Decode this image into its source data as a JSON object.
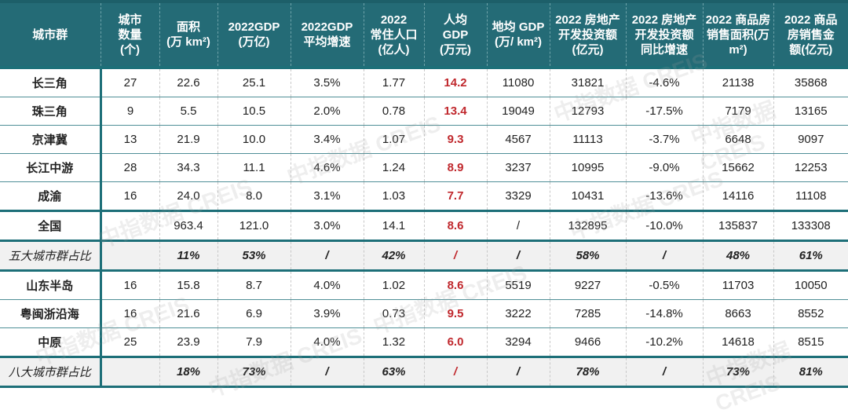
{
  "headers": [
    "城市群",
    "城市\n数量\n(个)",
    "面积\n(万 km²)",
    "2022GDP\n(万亿)",
    "2022GDP\n平均增速",
    "2022\n常住人口\n(亿人)",
    "人均\nGDP\n(万元)",
    "地均 GDP\n(万/ km²)",
    "2022 房地产\n开发投资额\n(亿元)",
    "2022 房地产\n开发投资额\n同比增速",
    "2022 商品房\n销售面积(万\nm²)",
    "2022 商品\n房销售金\n额(亿元)"
  ],
  "rows": [
    {
      "type": "normal",
      "cells": [
        "长三角",
        "27",
        "22.6",
        "25.1",
        "3.5%",
        "1.77",
        "14.2",
        "11080",
        "31821",
        "-4.6%",
        "21138",
        "35868"
      ]
    },
    {
      "type": "normal",
      "cells": [
        "珠三角",
        "9",
        "5.5",
        "10.5",
        "2.0%",
        "0.78",
        "13.4",
        "19049",
        "12793",
        "-17.5%",
        "7179",
        "13165"
      ]
    },
    {
      "type": "normal",
      "cells": [
        "京津冀",
        "13",
        "21.9",
        "10.0",
        "3.4%",
        "1.07",
        "9.3",
        "4567",
        "11113",
        "-3.7%",
        "6648",
        "9097"
      ]
    },
    {
      "type": "normal",
      "cells": [
        "长江中游",
        "28",
        "34.3",
        "11.1",
        "4.6%",
        "1.24",
        "8.9",
        "3237",
        "10995",
        "-9.0%",
        "15662",
        "12253"
      ]
    },
    {
      "type": "normal",
      "cells": [
        "成渝",
        "16",
        "24.0",
        "8.0",
        "3.1%",
        "1.03",
        "7.7",
        "3329",
        "10431",
        "-13.6%",
        "14116",
        "11108"
      ]
    },
    {
      "type": "total",
      "cells": [
        "全国",
        "",
        "963.4",
        "121.0",
        "3.0%",
        "14.1",
        "8.6",
        "/",
        "132895",
        "-10.0%",
        "135837",
        "133308"
      ]
    },
    {
      "type": "ratio",
      "cells": [
        "五大城市群占比",
        "",
        "11%",
        "53%",
        "/",
        "42%",
        "/",
        "/",
        "58%",
        "/",
        "48%",
        "61%"
      ]
    },
    {
      "type": "normal",
      "cells": [
        "山东半岛",
        "16",
        "15.8",
        "8.7",
        "4.0%",
        "1.02",
        "8.6",
        "5519",
        "9227",
        "-0.5%",
        "11703",
        "10050"
      ]
    },
    {
      "type": "normal",
      "cells": [
        "粤闽浙沿海",
        "16",
        "21.6",
        "6.9",
        "3.9%",
        "0.73",
        "9.5",
        "3222",
        "7285",
        "-14.8%",
        "8663",
        "8552"
      ]
    },
    {
      "type": "normal",
      "cells": [
        "中原",
        "25",
        "23.9",
        "7.9",
        "4.0%",
        "1.32",
        "6.0",
        "3294",
        "9466",
        "-10.2%",
        "14618",
        "8515"
      ]
    },
    {
      "type": "ratio",
      "cells": [
        "八大城市群占比",
        "",
        "18%",
        "73%",
        "/",
        "63%",
        "/",
        "/",
        "78%",
        "/",
        "73%",
        "81%"
      ]
    }
  ],
  "watermark": "中指数据 CREIS",
  "colors": {
    "header_bg": "#246b76",
    "highlight_red": "#c0282d",
    "ratio_bg": "#f1f1f1"
  }
}
